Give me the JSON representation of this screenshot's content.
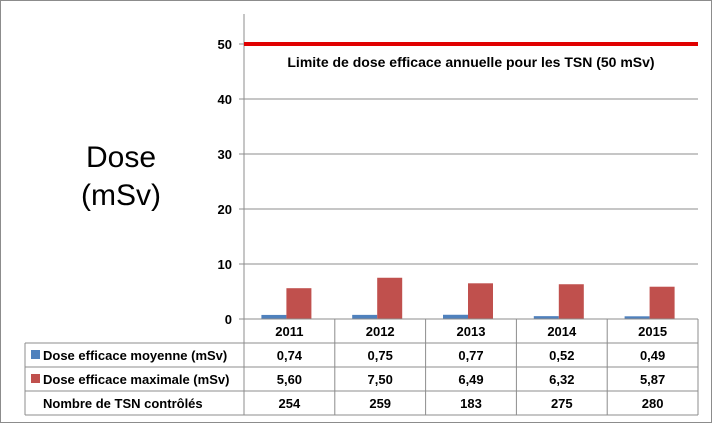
{
  "chart_data": {
    "type": "bar",
    "ylabel_lines": [
      "Dose",
      "(mSv)"
    ],
    "categories": [
      "2011",
      "2012",
      "2013",
      "2014",
      "2015"
    ],
    "ylim": [
      0,
      50
    ],
    "yticks": [
      "0",
      "10",
      "20",
      "30",
      "40",
      "50"
    ],
    "grid": true,
    "reference_line": {
      "value": 50,
      "label": "Limite de dose efficace annuelle pour les TSN (50 mSv)",
      "color": "#e00000"
    },
    "series": [
      {
        "name": "Dose efficace moyenne (mSv)",
        "color": "#4f81bd",
        "values": [
          0.74,
          0.75,
          0.77,
          0.52,
          0.49
        ],
        "labels": [
          "0,74",
          "0,75",
          "0,77",
          "0,52",
          "0,49"
        ]
      },
      {
        "name": "Dose efficace maximale (mSv)",
        "color": "#c0504d",
        "values": [
          5.6,
          7.5,
          6.49,
          6.32,
          5.87
        ],
        "labels": [
          "5,60",
          "7,50",
          "6,49",
          "6,32",
          "5,87"
        ]
      }
    ],
    "table_rows": [
      {
        "label": "Nombre de TSN contrôlés",
        "values": [
          "254",
          "259",
          "183",
          "275",
          "280"
        ]
      }
    ]
  }
}
